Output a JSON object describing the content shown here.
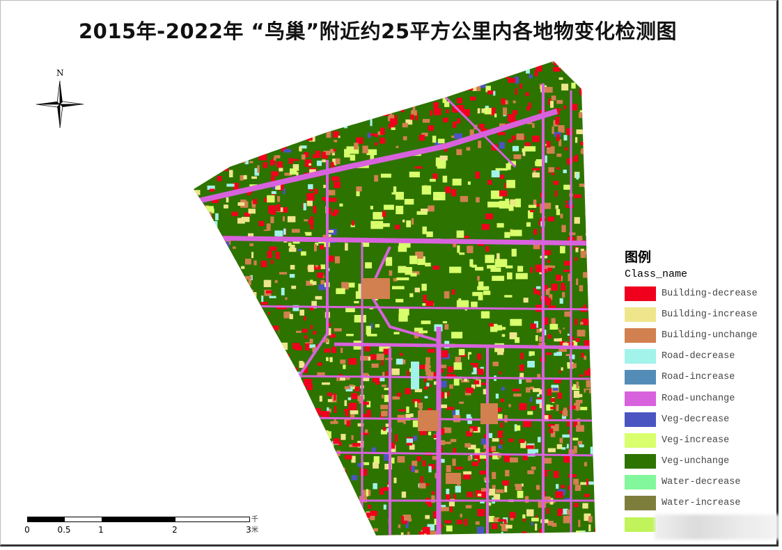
{
  "title": "2015年-2022年 “鸟巢”附近约25平方公里内各地物变化检测图",
  "north_arrow": {
    "label": "N",
    "icon": "north-arrow-compass-icon"
  },
  "legend": {
    "title": "图例",
    "field": "Class_name",
    "items": [
      {
        "label": "Building-decrease",
        "color": "#f0001c"
      },
      {
        "label": "Building-increase",
        "color": "#efe68c"
      },
      {
        "label": "Building-unchange",
        "color": "#d2804f"
      },
      {
        "label": "Road-decrease",
        "color": "#a2f3ea"
      },
      {
        "label": "Road-increase",
        "color": "#548cb8"
      },
      {
        "label": "Road-unchange",
        "color": "#d862dd"
      },
      {
        "label": "Veg-decrease",
        "color": "#4a55c2"
      },
      {
        "label": "Veg-increase",
        "color": "#d9ff6d"
      },
      {
        "label": "Veg-unchange",
        "color": "#2d7300"
      },
      {
        "label": "Water-decrease",
        "color": "#83f79b"
      },
      {
        "label": "Water-increase",
        "color": "#7e7e3c"
      },
      {
        "label": "",
        "color": "#c0f45a"
      }
    ]
  },
  "scale_bar": {
    "ticks": [
      "0",
      "0.5",
      "1",
      "2",
      "3"
    ],
    "unit": "千米"
  }
}
